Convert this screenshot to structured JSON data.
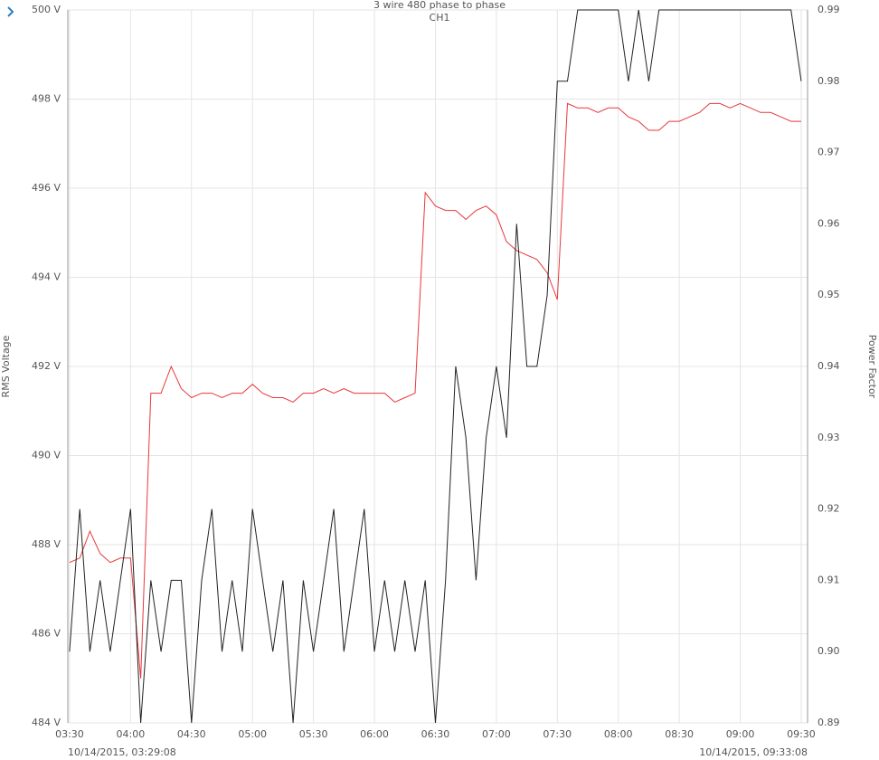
{
  "chart_data": {
    "type": "line",
    "title": "3 wire 480 phase to phase",
    "subtitle": "CH1",
    "y_label": "RMS Voltage",
    "y2_label": "Power Factor",
    "xlim": [
      "10/14/2015, 03:29:08",
      "10/14/2015, 09:33:08"
    ],
    "xticks": [
      "03:30",
      "04:00",
      "04:30",
      "05:00",
      "05:30",
      "06:00",
      "06:30",
      "07:00",
      "07:30",
      "08:00",
      "08:30",
      "09:00",
      "09:30"
    ],
    "ylim": [
      484,
      500
    ],
    "yticks": [
      {
        "value": 484,
        "label": "484 V"
      },
      {
        "value": 486,
        "label": "486 V"
      },
      {
        "value": 488,
        "label": "488 V"
      },
      {
        "value": 490,
        "label": "490 V"
      },
      {
        "value": 492,
        "label": "492 V"
      },
      {
        "value": 494,
        "label": "494 V"
      },
      {
        "value": 496,
        "label": "496 V"
      },
      {
        "value": 498,
        "label": "498 V"
      },
      {
        "value": 500,
        "label": "500 V"
      }
    ],
    "y2lim": [
      0.89,
      0.99
    ],
    "y2ticks": [
      0.89,
      {
        "value": 0.9,
        "label": "0.90"
      },
      0.91,
      0.92,
      0.93,
      0.94,
      0.95,
      0.96,
      0.97,
      0.98,
      0.99
    ],
    "grid": true,
    "x": [
      "03:30",
      "03:35",
      "03:40",
      "03:45",
      "03:50",
      "03:55",
      "04:00",
      "04:05",
      "04:10",
      "04:15",
      "04:20",
      "04:25",
      "04:30",
      "04:35",
      "04:40",
      "04:45",
      "04:50",
      "04:55",
      "05:00",
      "05:05",
      "05:10",
      "05:15",
      "05:20",
      "05:25",
      "05:30",
      "05:35",
      "05:40",
      "05:45",
      "05:50",
      "05:55",
      "06:00",
      "06:05",
      "06:10",
      "06:15",
      "06:20",
      "06:25",
      "06:30",
      "06:35",
      "06:40",
      "06:45",
      "06:50",
      "06:55",
      "07:00",
      "07:05",
      "07:10",
      "07:15",
      "07:20",
      "07:25",
      "07:30",
      "07:35",
      "07:40",
      "07:45",
      "07:50",
      "07:55",
      "08:00",
      "08:05",
      "08:10",
      "08:15",
      "08:20",
      "08:25",
      "08:30",
      "08:35",
      "08:40",
      "08:45",
      "08:50",
      "08:55",
      "09:00",
      "09:05",
      "09:10",
      "09:15",
      "09:20",
      "09:25",
      "09:30"
    ],
    "series": [
      {
        "color": "#e8383b",
        "values": [
          487.6,
          487.7,
          488.3,
          487.8,
          487.6,
          487.7,
          487.7,
          485.0,
          491.4,
          491.4,
          492.0,
          491.5,
          491.3,
          491.4,
          491.4,
          491.3,
          491.4,
          491.4,
          491.6,
          491.4,
          491.3,
          491.3,
          491.2,
          491.4,
          491.4,
          491.5,
          491.4,
          491.5,
          491.4,
          491.4,
          491.4,
          491.4,
          491.2,
          491.3,
          491.4,
          495.9,
          495.6,
          495.5,
          495.5,
          495.3,
          495.5,
          495.6,
          495.4,
          494.8,
          494.6,
          494.5,
          494.4,
          494.1,
          493.5,
          497.9,
          497.8,
          497.8,
          497.7,
          497.8,
          497.8,
          497.6,
          497.5,
          497.3,
          497.3,
          497.5,
          497.5,
          497.6,
          497.7,
          497.9,
          497.9,
          497.8,
          497.9,
          497.8,
          497.7,
          497.7,
          497.6,
          497.5,
          497.5
        ]
      },
      {
        "color": "#222222",
        "axis": "y2",
        "values": [
          0.9,
          0.92,
          0.9,
          0.91,
          0.9,
          0.91,
          0.92,
          0.89,
          0.91,
          0.9,
          0.91,
          0.91,
          0.89,
          0.91,
          0.92,
          0.9,
          0.91,
          0.9,
          0.92,
          0.91,
          0.9,
          0.91,
          0.89,
          0.91,
          0.9,
          0.91,
          0.92,
          0.9,
          0.91,
          0.92,
          0.9,
          0.91,
          0.9,
          0.91,
          0.9,
          0.91,
          0.89,
          0.91,
          0.94,
          0.93,
          0.91,
          0.93,
          0.94,
          0.93,
          0.96,
          0.94,
          0.94,
          0.95,
          0.98,
          0.98,
          0.99,
          0.99,
          0.99,
          0.99,
          0.99,
          0.98,
          0.99,
          0.98,
          0.99,
          0.99,
          0.99,
          0.99,
          0.99,
          0.99,
          0.99,
          0.99,
          0.99,
          0.99,
          0.99,
          0.99,
          0.99,
          0.99,
          0.98
        ]
      }
    ]
  }
}
